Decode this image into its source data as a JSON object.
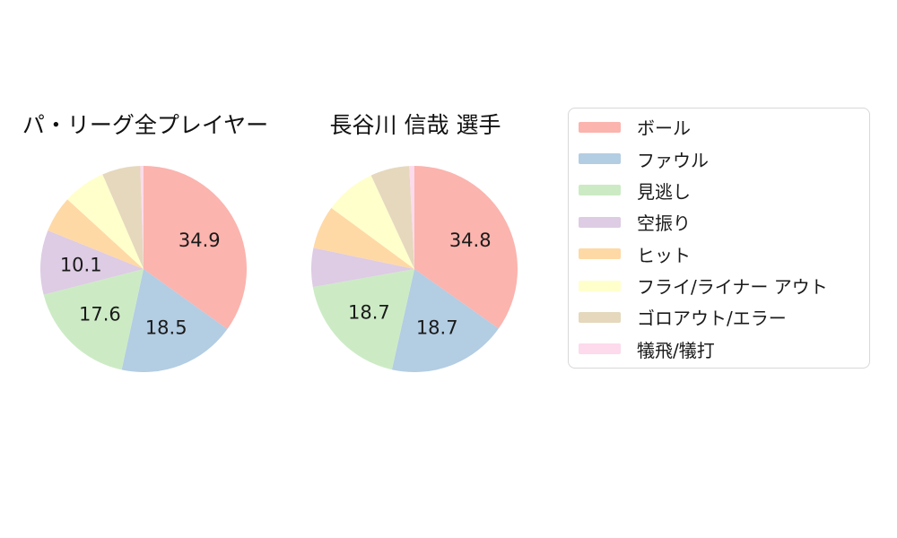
{
  "background_color": "#ffffff",
  "palette": {
    "red": "#fbb4ae",
    "blue": "#b3cde3",
    "green": "#ccebc5",
    "purple": "#decbe4",
    "orange": "#fed9a6",
    "yellow": "#ffffcc",
    "tan": "#e5d8bd",
    "pink": "#fddaec"
  },
  "legend": {
    "items": [
      {
        "key": "ball",
        "label": "ボール",
        "color": "#fbb4ae"
      },
      {
        "key": "foul",
        "label": "ファウル",
        "color": "#b3cde3"
      },
      {
        "key": "called-strike",
        "label": "見逃し",
        "color": "#ccebc5"
      },
      {
        "key": "swinging-strike",
        "label": "空振り",
        "color": "#decbe4"
      },
      {
        "key": "hit",
        "label": "ヒット",
        "color": "#fed9a6"
      },
      {
        "key": "fly-liner-out",
        "label": "フライ/ライナー アウト",
        "color": "#ffffcc"
      },
      {
        "key": "groundout-error",
        "label": "ゴロアウト/エラー",
        "color": "#e5d8bd"
      },
      {
        "key": "sac-fly-bunt",
        "label": "犠飛/犠打",
        "color": "#fddaec"
      }
    ]
  },
  "chart_data": [
    {
      "type": "pie",
      "title": "パ・リーグ全プレイヤー",
      "categories": [
        "ボール",
        "ファウル",
        "見逃し",
        "空振り",
        "ヒット",
        "フライ/ライナー アウト",
        "ゴロアウト/エラー",
        "犠飛/犠打"
      ],
      "keys": [
        "ball",
        "foul",
        "called-strike",
        "swinging-strike",
        "hit",
        "fly-liner-out",
        "groundout-error",
        "sac-fly-bunt"
      ],
      "values": [
        34.9,
        18.5,
        17.6,
        10.1,
        5.7,
        6.7,
        6.0,
        0.5
      ],
      "colors": [
        "#fbb4ae",
        "#b3cde3",
        "#ccebc5",
        "#decbe4",
        "#fed9a6",
        "#ffffcc",
        "#e5d8bd",
        "#fddaec"
      ],
      "unit": "percent",
      "start_angle": "12-oclock",
      "direction": "clockwise",
      "value_labels_shown": [
        "34.9",
        "18.5",
        "17.6",
        "10.1"
      ],
      "value_label_min_threshold": 10,
      "legend_position": "right",
      "note": "values for unlabeled slices estimated from arc angles"
    },
    {
      "type": "pie",
      "title": "長谷川 信哉  選手",
      "categories": [
        "ボール",
        "ファウル",
        "見逃し",
        "空振り",
        "ヒット",
        "フライ/ライナー アウト",
        "ゴロアウト/エラー",
        "犠飛/犠打"
      ],
      "keys": [
        "ball",
        "foul",
        "called-strike",
        "swinging-strike",
        "hit",
        "fly-liner-out",
        "groundout-error",
        "sac-fly-bunt"
      ],
      "values": [
        34.8,
        18.7,
        18.7,
        6.1,
        6.8,
        8.0,
        6.1,
        0.8
      ],
      "colors": [
        "#fbb4ae",
        "#b3cde3",
        "#ccebc5",
        "#decbe4",
        "#fed9a6",
        "#ffffcc",
        "#e5d8bd",
        "#fddaec"
      ],
      "unit": "percent",
      "start_angle": "12-oclock",
      "direction": "clockwise",
      "value_labels_shown": [
        "34.8",
        "18.7",
        "18.7"
      ],
      "value_label_min_threshold": 10,
      "legend_position": "right",
      "note": "values for unlabeled slices estimated from arc angles"
    }
  ]
}
